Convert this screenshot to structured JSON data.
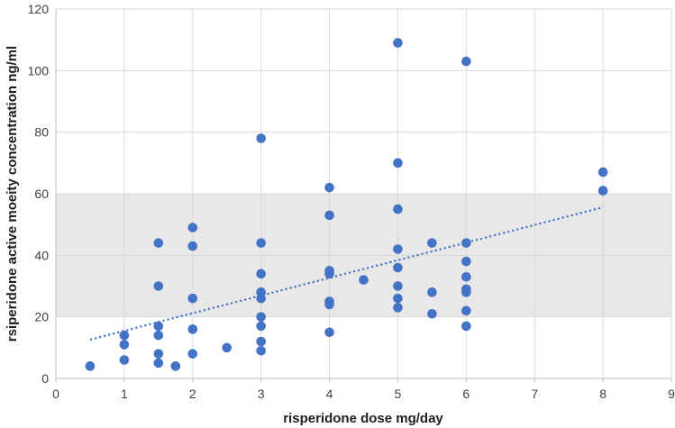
{
  "chart_data": {
    "type": "scatter",
    "title": "",
    "xlabel": "risperidone dose mg/day",
    "ylabel": "rsiperidone active moeity concentration ng/ml",
    "xlim": [
      0,
      9
    ],
    "ylim": [
      0,
      120
    ],
    "x_ticks": [
      "0",
      "1",
      "2",
      "3",
      "4",
      "5",
      "6",
      "7",
      "8",
      "9"
    ],
    "y_ticks": [
      "0",
      "20",
      "40",
      "60",
      "80",
      "100",
      "120"
    ],
    "grid": "on",
    "legend": "none",
    "reference_band": {
      "y_min": 20,
      "y_max": 60,
      "color": "#e8e8e8"
    },
    "trendline": {
      "style": "dotted",
      "x1": 0.5,
      "y1": 12.6,
      "x2": 8.0,
      "y2": 55.6,
      "color": "#4472c4"
    },
    "point_color": "#4472c4",
    "gridline_color": "#d9d9d9",
    "axis_line_color": "#bfbfbf",
    "points": [
      {
        "x": 0.5,
        "y": 4
      },
      {
        "x": 1,
        "y": 14
      },
      {
        "x": 1,
        "y": 11
      },
      {
        "x": 1,
        "y": 6
      },
      {
        "x": 1.5,
        "y": 44
      },
      {
        "x": 1.5,
        "y": 30
      },
      {
        "x": 1.5,
        "y": 17
      },
      {
        "x": 1.5,
        "y": 14
      },
      {
        "x": 1.5,
        "y": 8
      },
      {
        "x": 1.5,
        "y": 5
      },
      {
        "x": 1.75,
        "y": 4
      },
      {
        "x": 2,
        "y": 49
      },
      {
        "x": 2,
        "y": 43
      },
      {
        "x": 2,
        "y": 26
      },
      {
        "x": 2,
        "y": 16
      },
      {
        "x": 2,
        "y": 8
      },
      {
        "x": 2.5,
        "y": 10
      },
      {
        "x": 3,
        "y": 78
      },
      {
        "x": 3,
        "y": 44
      },
      {
        "x": 3,
        "y": 34
      },
      {
        "x": 3,
        "y": 28
      },
      {
        "x": 3,
        "y": 26
      },
      {
        "x": 3,
        "y": 20
      },
      {
        "x": 3,
        "y": 17
      },
      {
        "x": 3,
        "y": 12
      },
      {
        "x": 3,
        "y": 9
      },
      {
        "x": 4,
        "y": 62
      },
      {
        "x": 4,
        "y": 53
      },
      {
        "x": 4,
        "y": 35
      },
      {
        "x": 4,
        "y": 34
      },
      {
        "x": 4,
        "y": 25
      },
      {
        "x": 4,
        "y": 24
      },
      {
        "x": 4,
        "y": 15
      },
      {
        "x": 4.5,
        "y": 32
      },
      {
        "x": 5,
        "y": 109
      },
      {
        "x": 5,
        "y": 70
      },
      {
        "x": 5,
        "y": 55
      },
      {
        "x": 5,
        "y": 42
      },
      {
        "x": 5,
        "y": 36
      },
      {
        "x": 5,
        "y": 30
      },
      {
        "x": 5,
        "y": 26
      },
      {
        "x": 5,
        "y": 23
      },
      {
        "x": 5.5,
        "y": 44
      },
      {
        "x": 5.5,
        "y": 28
      },
      {
        "x": 5.5,
        "y": 21
      },
      {
        "x": 6,
        "y": 103
      },
      {
        "x": 6,
        "y": 44
      },
      {
        "x": 6,
        "y": 38
      },
      {
        "x": 6,
        "y": 33
      },
      {
        "x": 6,
        "y": 29
      },
      {
        "x": 6,
        "y": 28
      },
      {
        "x": 6,
        "y": 22
      },
      {
        "x": 6,
        "y": 17
      },
      {
        "x": 8,
        "y": 67
      },
      {
        "x": 8,
        "y": 61
      }
    ]
  }
}
